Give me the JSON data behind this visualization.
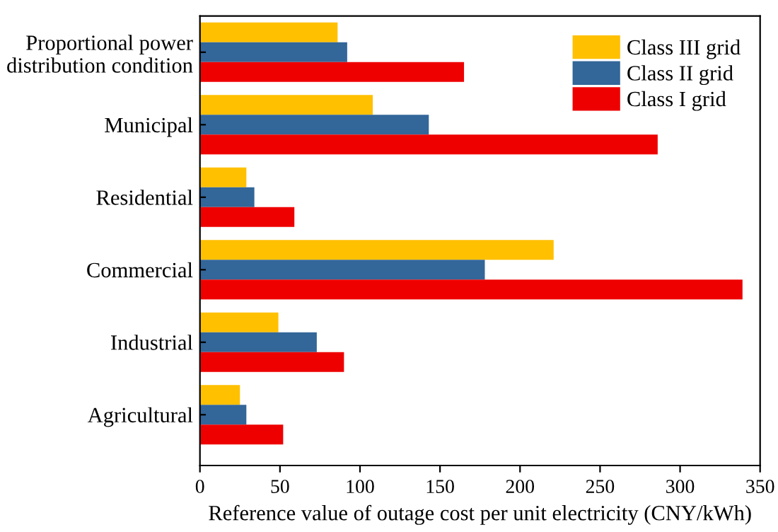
{
  "chart_data": {
    "type": "bar",
    "orientation": "horizontal",
    "xlabel": "Reference value of outage cost per unit electricity (CNY/kWh)",
    "categories": [
      "Proportional power\ndistribution condition",
      "Municipal",
      "Residential",
      "Commercial",
      "Industrial",
      "Agricultural"
    ],
    "series": [
      {
        "name": "Class III grid",
        "color": "#ffc000",
        "values": [
          86,
          108,
          29,
          221,
          49,
          25
        ]
      },
      {
        "name": "Class II grid",
        "color": "#336699",
        "values": [
          92,
          143,
          34,
          178,
          73,
          29
        ]
      },
      {
        "name": "Class I grid",
        "color": "#ee0000",
        "values": [
          165,
          286,
          59,
          339,
          90,
          52
        ]
      }
    ],
    "xlim": [
      0,
      350
    ],
    "xticks": [
      0,
      50,
      100,
      150,
      200,
      250,
      300,
      350
    ],
    "grid": false,
    "legend": "top right"
  }
}
